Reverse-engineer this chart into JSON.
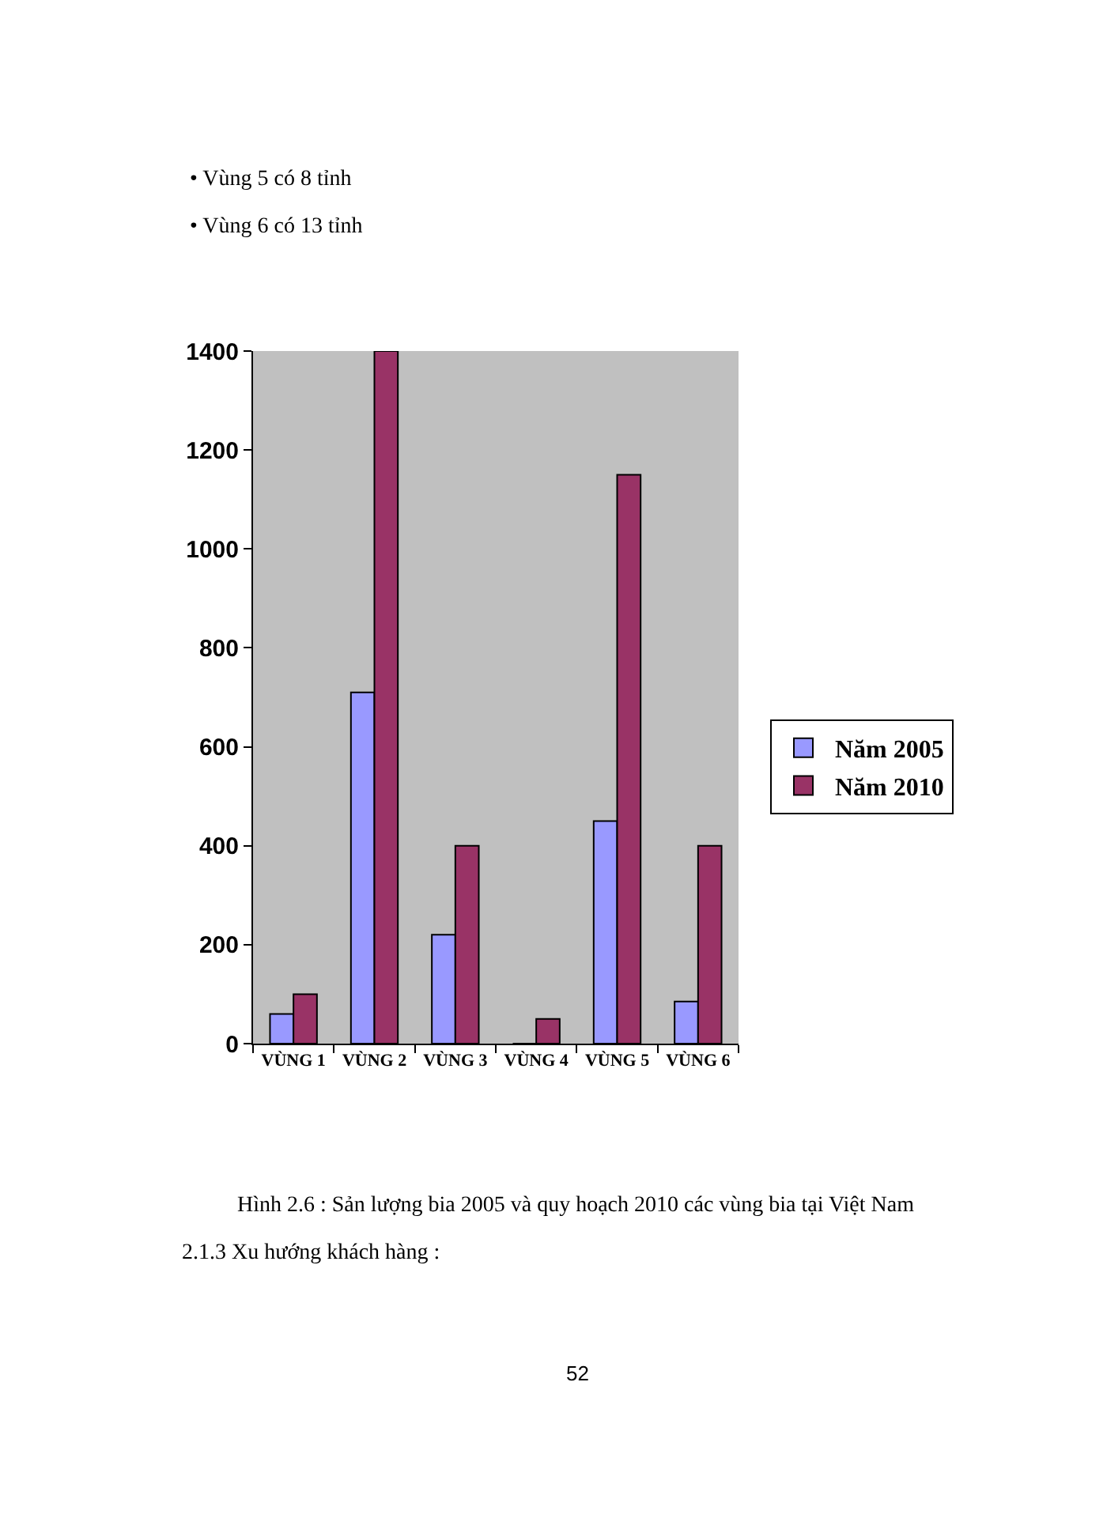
{
  "chart_data": {
    "type": "bar",
    "categories": [
      "VÙNG 1",
      "VÙNG 2",
      "VÙNG 3",
      "VÙNG 4",
      "VÙNG 5",
      "VÙNG 6"
    ],
    "series": [
      {
        "name": "Năm 2005",
        "color": "#9999ff",
        "values": [
          60,
          710,
          220,
          0,
          450,
          85
        ]
      },
      {
        "name": "Năm 2010",
        "color": "#993366",
        "values": [
          100,
          1400,
          400,
          50,
          1150,
          400
        ]
      }
    ],
    "ylim": [
      0,
      1400
    ],
    "yticks": [
      0,
      200,
      400,
      600,
      800,
      1000,
      1200,
      1400
    ],
    "grid": false,
    "legend": "right",
    "annotations": [
      "• Vùng 5 có 8 tỉnh",
      "• Vùng 6 có 13 tỉnh",
      "Hình 2.6 : Sản lượng bia 2005 và quy hoạch 2010 các vùng bia tại Việt Nam",
      "2.1.3 Xu hướng khách hàng :",
      "52"
    ]
  }
}
